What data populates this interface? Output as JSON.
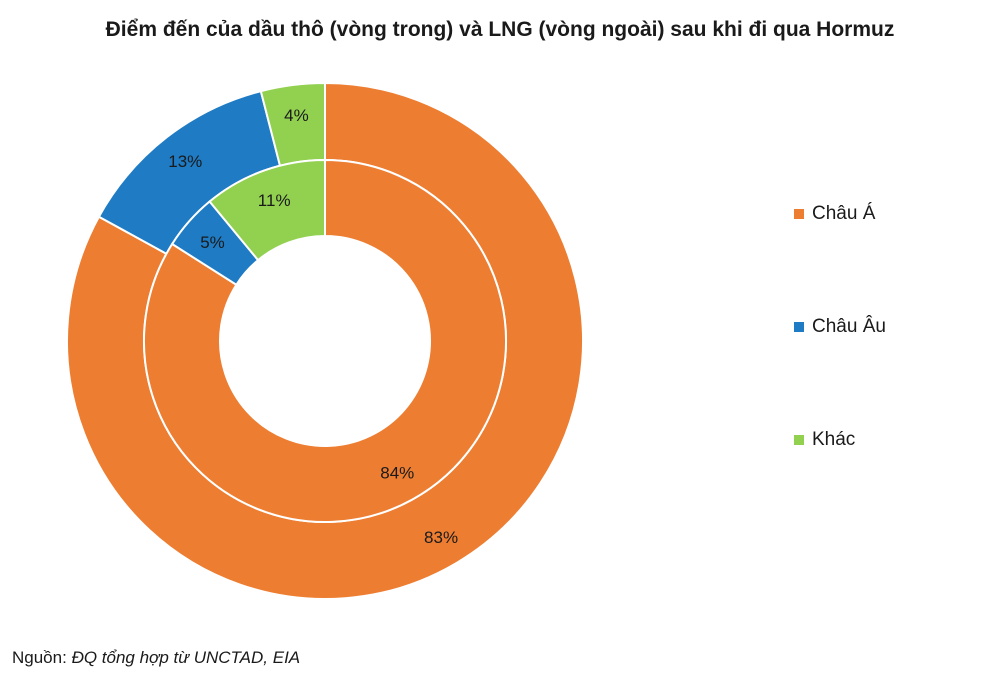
{
  "chart_data": {
    "type": "pie",
    "subtype": "nested-donut",
    "title": "Điểm đến của dầu thô (vòng trong) và LNG (vòng ngoài) sau khi đi qua Hormuz",
    "categories": [
      "Châu Á",
      "Châu Âu",
      "Khác"
    ],
    "colors": [
      "#ED7D31",
      "#1E7BC4",
      "#92D050"
    ],
    "series": [
      {
        "name": "Dầu thô (vòng trong)",
        "ring": "inner",
        "values": [
          84,
          5,
          11
        ],
        "labels": [
          "84%",
          "5%",
          "11%"
        ]
      },
      {
        "name": "LNG (vòng ngoài)",
        "ring": "outer",
        "values": [
          83,
          13,
          4
        ],
        "labels": [
          "83%",
          "13%",
          "4%"
        ]
      }
    ],
    "legend_position": "right"
  },
  "source": {
    "prefix": "Nguồn:",
    "text": "ĐQ tổng hợp từ UNCTAD, EIA"
  }
}
